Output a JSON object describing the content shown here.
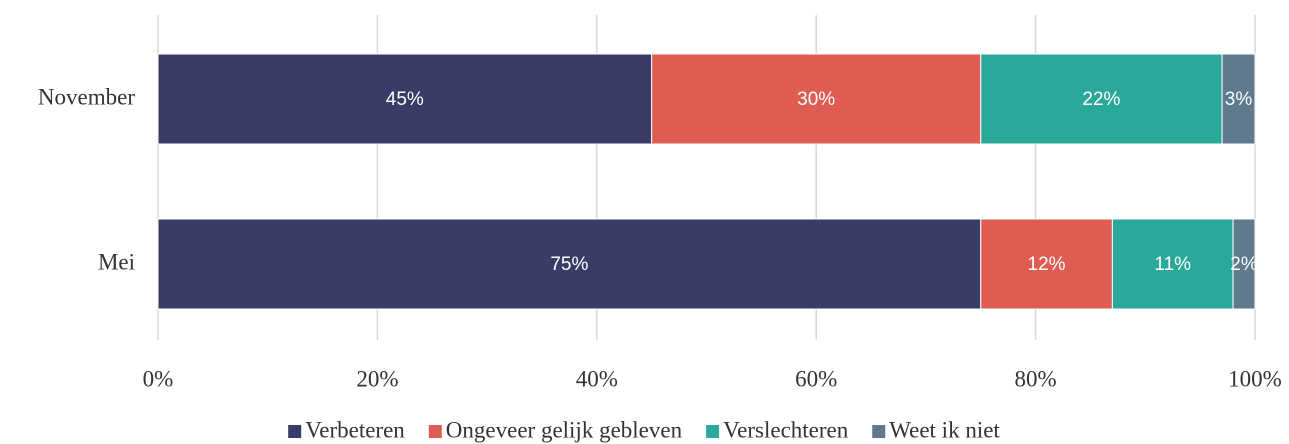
{
  "chart_data": {
    "type": "stacked-barh",
    "categories": [
      "November",
      "Mei"
    ],
    "series": [
      {
        "name": "Verbeteren",
        "color": "#3a3c68",
        "values": [
          45,
          75
        ],
        "value_labels": [
          "45%",
          "75%"
        ]
      },
      {
        "name": "Ongeveer gelijk gebleven",
        "color": "#de5c52",
        "values": [
          30,
          12
        ],
        "value_labels": [
          "30%",
          "12%"
        ]
      },
      {
        "name": "Verslechteren",
        "color": "#2aa89a",
        "values": [
          22,
          11
        ],
        "value_labels": [
          "22%",
          "11%"
        ]
      },
      {
        "name": "Weet ik niet",
        "color": "#5f7a8e",
        "values": [
          3,
          2
        ],
        "value_labels": [
          "3%",
          "2%"
        ]
      }
    ],
    "xlim": [
      0,
      100
    ],
    "xticks": [
      {
        "value": 0,
        "label": "0%"
      },
      {
        "value": 20,
        "label": "20%"
      },
      {
        "value": 40,
        "label": "40%"
      },
      {
        "value": 60,
        "label": "60%"
      },
      {
        "value": 80,
        "label": "80%"
      },
      {
        "value": 100,
        "label": "100%"
      }
    ],
    "grid": true,
    "legend": "bottom"
  }
}
